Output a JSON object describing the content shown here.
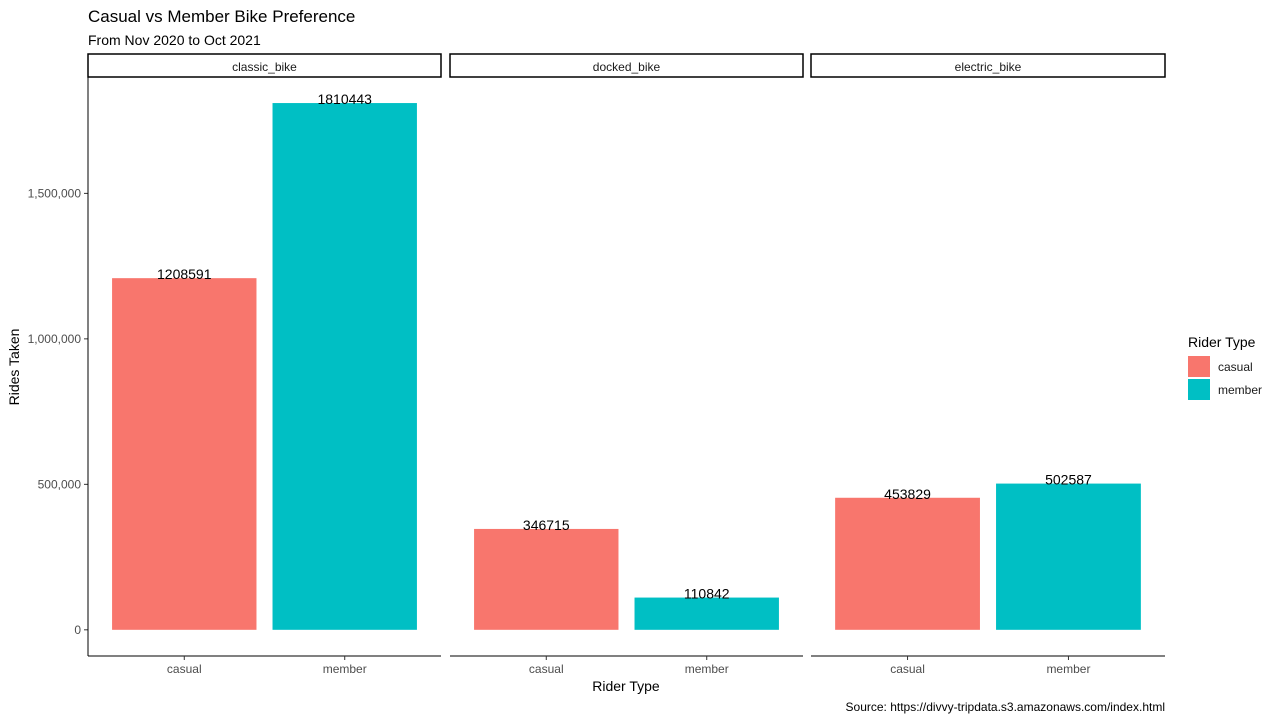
{
  "chart_data": {
    "type": "bar",
    "title": "Casual vs Member Bike Preference",
    "subtitle": "From Nov 2020 to Oct 2021",
    "xlabel": "Rider Type",
    "ylabel": "Rides Taken",
    "caption": "Source: https://divvy-tripdata.s3.amazonaws.com/index.html",
    "ylim": [
      -90000,
      1900000
    ],
    "yticks": [
      0,
      500000,
      1000000,
      1500000
    ],
    "ytick_labels": [
      "0",
      "500,000",
      "1,000,000",
      "1,500,000"
    ],
    "grid": false,
    "categories": [
      "casual",
      "member"
    ],
    "facets": [
      {
        "name": "classic_bike",
        "values": [
          1208591,
          1810443
        ],
        "labels": [
          "1208591",
          "1810443"
        ]
      },
      {
        "name": "docked_bike",
        "values": [
          346715,
          110842
        ],
        "labels": [
          "346715",
          "110842"
        ]
      },
      {
        "name": "electric_bike",
        "values": [
          453829,
          502587
        ],
        "labels": [
          "453829",
          "502587"
        ]
      }
    ],
    "legend": {
      "title": "Rider Type",
      "placement": "right",
      "entries": [
        {
          "name": "casual",
          "color": "#F8766D"
        },
        {
          "name": "member",
          "color": "#00BFC4"
        }
      ]
    }
  }
}
